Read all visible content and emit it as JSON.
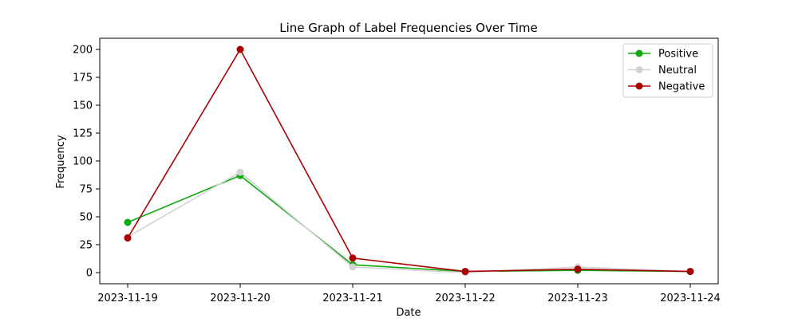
{
  "chart_data": {
    "type": "line",
    "title": "Line Graph of Label Frequencies Over Time",
    "xlabel": "Date",
    "ylabel": "Frequency",
    "x": [
      "2023-11-19",
      "2023-11-20",
      "2023-11-21",
      "2023-11-22",
      "2023-11-23",
      "2023-11-24"
    ],
    "ylim": [
      -10,
      210
    ],
    "yticks": [
      0,
      25,
      50,
      75,
      100,
      125,
      150,
      175,
      200
    ],
    "grid": false,
    "legend_position": "top-right",
    "marker": "circle",
    "series": [
      {
        "name": "Positive",
        "color": "#11aa11",
        "values": [
          45,
          87,
          7,
          1,
          2,
          1
        ]
      },
      {
        "name": "Neutral",
        "color": "#d3d3d3",
        "values": [
          32,
          90,
          5,
          0,
          5,
          1
        ]
      },
      {
        "name": "Negative",
        "color": "#aa0000",
        "values": [
          31,
          200,
          13,
          1,
          3,
          1
        ]
      }
    ]
  }
}
